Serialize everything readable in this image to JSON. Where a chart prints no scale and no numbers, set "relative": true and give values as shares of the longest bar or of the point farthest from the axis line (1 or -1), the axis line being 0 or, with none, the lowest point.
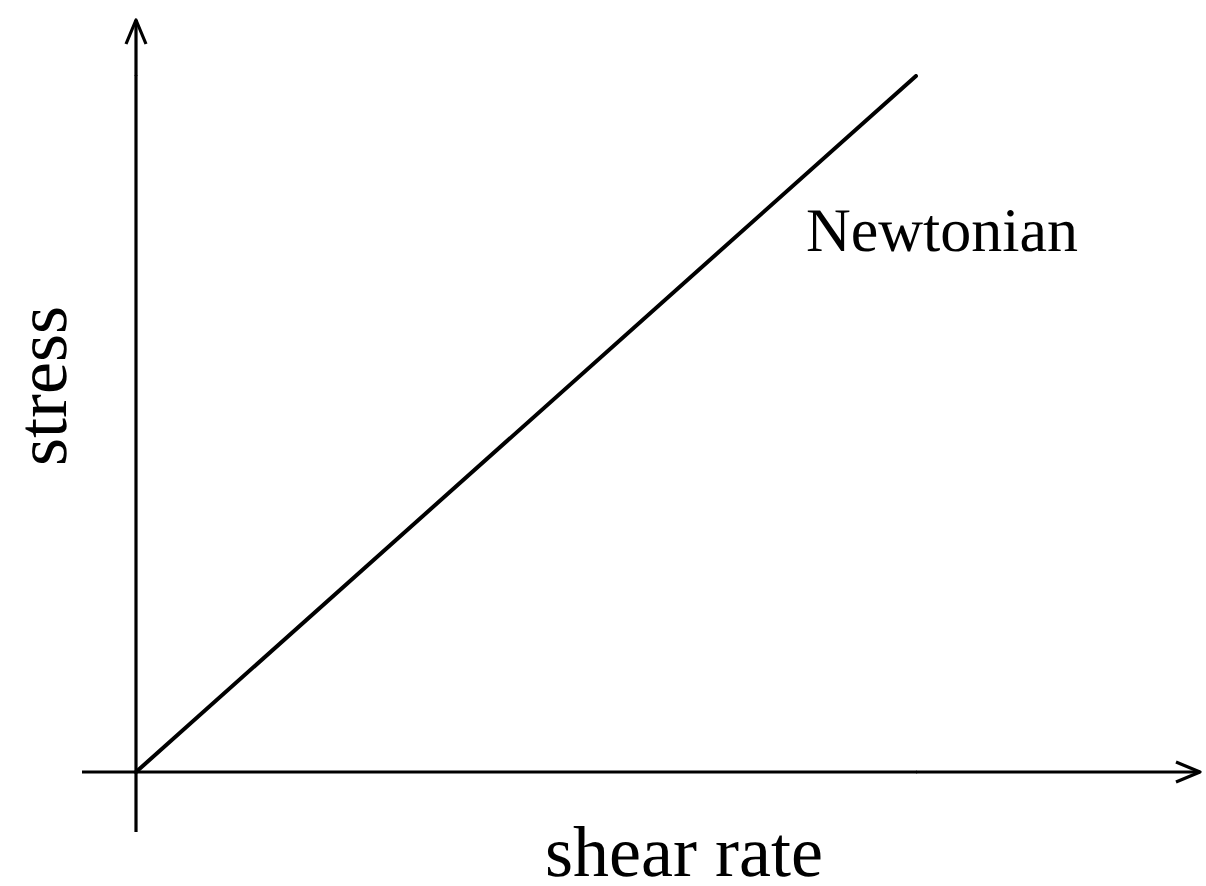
{
  "chart_data": {
    "type": "line",
    "xlabel": "shear rate",
    "ylabel": "stress",
    "categories": [
      null,
      null
    ],
    "series": [
      {
        "name": "Newtonian",
        "color": "#000000",
        "values": [
          0,
          1
        ]
      }
    ],
    "relative": true
  }
}
